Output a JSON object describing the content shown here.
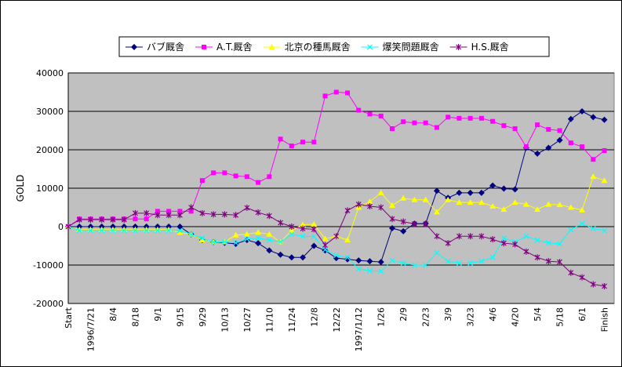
{
  "chart_data": {
    "type": "line",
    "y_label": "GOLD",
    "categories": [
      "Start",
      null,
      "1996/7/21",
      null,
      "8/4",
      null,
      "8/18",
      null,
      "9/1",
      null,
      "9/15",
      null,
      "9/29",
      null,
      "10/13",
      null,
      "10/27",
      null,
      "11/10",
      null,
      "11/24",
      null,
      "12/8",
      null,
      "12/22",
      null,
      "1997/1/12",
      null,
      "1/26",
      null,
      "2/9",
      null,
      "2/23",
      null,
      "3/9",
      null,
      "3/23",
      null,
      "4/6",
      null,
      "4/20",
      null,
      "5/4",
      null,
      "5/18",
      null,
      "6/1",
      null,
      "Finish"
    ],
    "series": [
      {
        "name": "バブ厩舎",
        "color": "#000080",
        "marker": "diamond",
        "values": [
          0,
          0,
          0,
          0,
          0,
          0,
          0,
          0,
          0,
          0,
          0,
          -2000,
          -3500,
          -4000,
          -4200,
          -4500,
          -3500,
          -4300,
          -6200,
          -7300,
          -8000,
          -8000,
          -5000,
          -6200,
          -8200,
          -8500,
          -8800,
          -9000,
          -9200,
          -400,
          -1200,
          800,
          800,
          9300,
          7500,
          8800,
          8800,
          8800,
          10700,
          9900,
          9700,
          20500,
          19000,
          20500,
          22500,
          28000,
          30000,
          28500,
          27800
        ]
      },
      {
        "name": "A.T.厩舎",
        "color": "#ff00ff",
        "marker": "square",
        "values": [
          0,
          2000,
          2000,
          2000,
          2000,
          2000,
          2000,
          2000,
          4000,
          4000,
          4000,
          4000,
          12000,
          14000,
          14000,
          13200,
          13000,
          11500,
          13000,
          22800,
          21000,
          22000,
          22000,
          34000,
          35000,
          34800,
          30300,
          29300,
          28800,
          25500,
          27300,
          27000,
          27000,
          25800,
          28500,
          28200,
          28200,
          28200,
          27400,
          26300,
          25500,
          20800,
          26500,
          25300,
          25000,
          21800,
          20800,
          17500,
          19800
        ]
      },
      {
        "name": "北京の種馬厩舎",
        "color": "#ffff00",
        "marker": "triangle",
        "values": [
          0,
          -800,
          -800,
          -800,
          -800,
          -800,
          -800,
          -800,
          -800,
          -800,
          -1500,
          -2000,
          -3500,
          -4000,
          -4000,
          -2200,
          -2000,
          -1500,
          -2000,
          -4000,
          -1000,
          500,
          600,
          -3200,
          -2500,
          -3500,
          5000,
          6500,
          8800,
          5500,
          7400,
          7000,
          7000,
          3800,
          7000,
          6300,
          6300,
          6300,
          5300,
          4500,
          6300,
          5800,
          4500,
          5800,
          5700,
          5000,
          4300,
          13000,
          12000
        ]
      },
      {
        "name": "爆笑問題厩舎",
        "color": "#00ffff",
        "marker": "x",
        "values": [
          0,
          -1000,
          -1000,
          -1000,
          -1000,
          -1000,
          -1000,
          -1000,
          -1000,
          -1000,
          -1000,
          -2000,
          -3000,
          -4000,
          -4000,
          -4200,
          -3200,
          -3000,
          -3500,
          -4000,
          -2000,
          -2500,
          -2600,
          -6000,
          -7500,
          -8000,
          -11000,
          -11500,
          -11600,
          -8800,
          -9500,
          -10000,
          -10000,
          -6800,
          -9000,
          -9500,
          -9500,
          -9000,
          -8000,
          -3000,
          -4000,
          -2500,
          -3500,
          -4200,
          -4500,
          -800,
          800,
          -500,
          -1000
        ]
      },
      {
        "name": "H.S.厩舎",
        "color": "#800080",
        "marker": "star",
        "values": [
          0,
          1800,
          1800,
          1800,
          1800,
          1800,
          3500,
          3500,
          3000,
          3000,
          3000,
          5000,
          3500,
          3200,
          3200,
          3000,
          4900,
          3700,
          2800,
          1000,
          0,
          -500,
          -700,
          -4800,
          -2500,
          4200,
          5800,
          5300,
          5000,
          2000,
          1300,
          700,
          700,
          -2500,
          -4300,
          -2500,
          -2500,
          -2500,
          -3300,
          -4300,
          -4600,
          -6500,
          -8000,
          -9000,
          -9200,
          -12000,
          -13200,
          -15000,
          -15500
        ]
      }
    ],
    "ylim": [
      -20000,
      40000
    ],
    "yticks": [
      -20000,
      -10000,
      0,
      10000,
      20000,
      30000,
      40000
    ],
    "grid": true,
    "legend": "top"
  }
}
